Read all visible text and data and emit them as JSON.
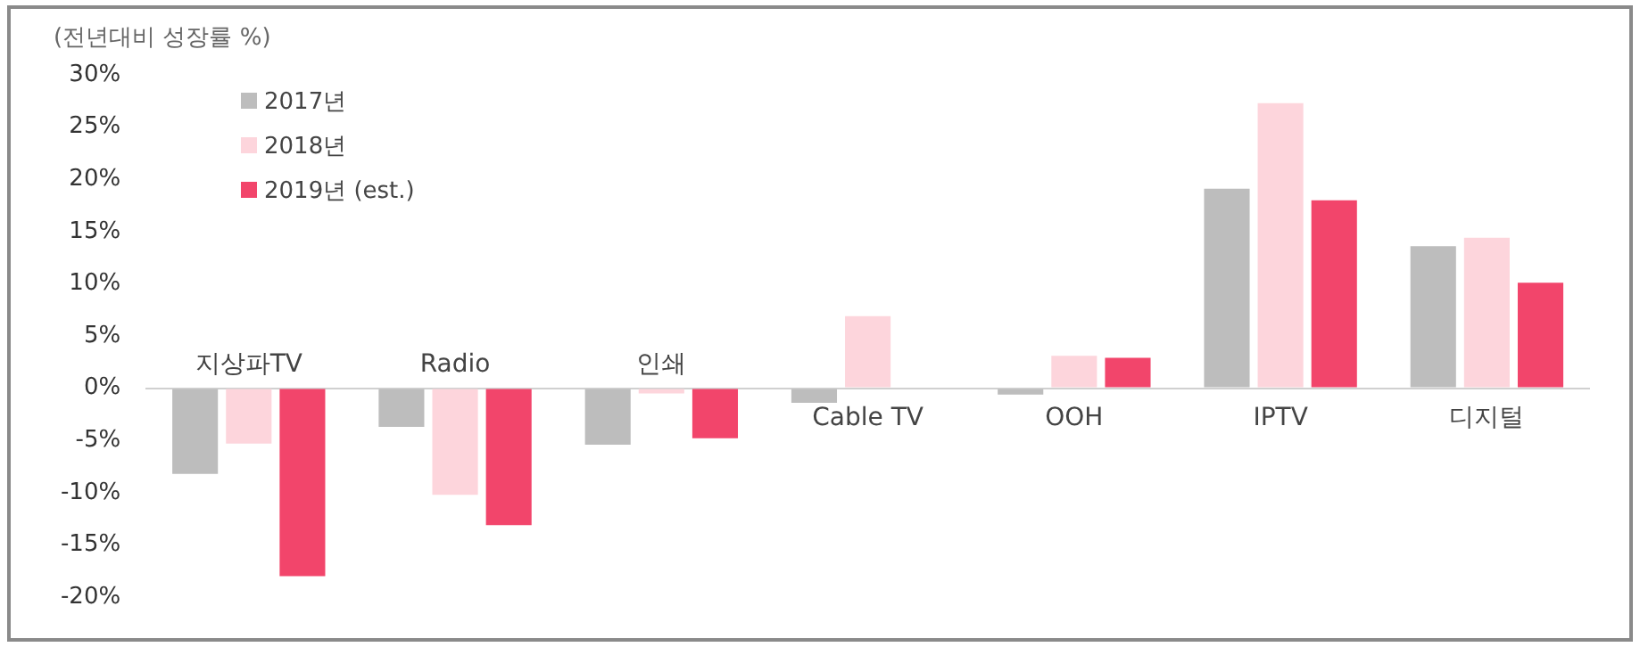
{
  "chart_data": {
    "type": "bar",
    "ylabel": "(전년대비 성장률 %)",
    "categories": [
      "지상파TV",
      "Radio",
      "인쇄",
      "Cable TV",
      "OOH",
      "IPTV",
      "디지털"
    ],
    "series": [
      {
        "name": "2017년",
        "color": "#bdbdbd",
        "values": [
          -8.2,
          -3.7,
          -5.4,
          -1.4,
          -0.6,
          19.1,
          13.6
        ]
      },
      {
        "name": "2018년",
        "color": "#fdd5dc",
        "values": [
          -5.3,
          -10.2,
          -0.5,
          6.9,
          3.1,
          27.3,
          14.4
        ]
      },
      {
        "name": "2019년 (est.)",
        "color": "#f2456b",
        "values": [
          -18.0,
          -13.1,
          -4.8,
          null,
          2.9,
          18.0,
          10.1
        ]
      }
    ],
    "ylim": [
      -20,
      30
    ],
    "yticks": [
      {
        "value": -20,
        "label": "-20%"
      },
      {
        "value": -15,
        "label": "-15%"
      },
      {
        "value": -10,
        "label": "-10%"
      },
      {
        "value": -5,
        "label": "-5%"
      },
      {
        "value": 0,
        "label": "0%"
      },
      {
        "value": 5,
        "label": "5%"
      },
      {
        "value": 10,
        "label": "10%"
      },
      {
        "value": 15,
        "label": "15%"
      },
      {
        "value": 20,
        "label": "20%"
      },
      {
        "value": 25,
        "label": "25%"
      },
      {
        "value": 30,
        "label": "30%"
      }
    ],
    "grid": false,
    "legend": "top left"
  }
}
